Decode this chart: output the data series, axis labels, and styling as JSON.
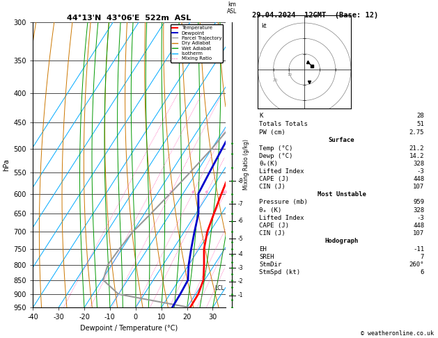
{
  "title_skewt": "44°13'N  43°06'E  522m  ASL",
  "title_right": "29.04.2024  12GMT  (Base: 12)",
  "xlabel": "Dewpoint / Temperature (°C)",
  "ylabel_left": "hPa",
  "ylabel_right": "Mixing Ratio (g/kg)",
  "pressure_levels": [
    300,
    350,
    400,
    450,
    500,
    550,
    600,
    650,
    700,
    750,
    800,
    850,
    900,
    950
  ],
  "temp_x": [
    -5.0,
    -3.5,
    -2.0,
    0.0,
    1.5,
    3.0,
    5.0,
    7.0,
    9.0,
    12.0,
    16.0,
    19.5,
    21.0,
    21.2
  ],
  "dewp_x": [
    -10.0,
    -9.0,
    -8.0,
    -7.0,
    -6.0,
    -5.0,
    -4.0,
    1.0,
    4.0,
    7.0,
    10.0,
    13.5,
    14.0,
    14.2
  ],
  "parcel_x": [
    -5.0,
    -5.5,
    -6.5,
    -8.0,
    -10.0,
    -12.5,
    -15.0,
    -17.5,
    -20.0,
    -21.0,
    -21.5,
    -19.5,
    -10.0,
    21.2
  ],
  "t_min": -40,
  "t_max": 35,
  "p_min": 300,
  "p_max": 950,
  "km_ticks": [
    1,
    2,
    3,
    4,
    5,
    6,
    7,
    8
  ],
  "km_pressures": [
    905,
    855,
    810,
    765,
    720,
    670,
    625,
    570
  ],
  "lcl_pressure": 880,
  "colors": {
    "temperature": "#ff0000",
    "dewpoint": "#0000cc",
    "parcel": "#999999",
    "dry_adiabat": "#cc7700",
    "wet_adiabat": "#009900",
    "isotherm": "#00aaff",
    "mixing_ratio": "#ff44aa",
    "background": "#ffffff",
    "grid": "#000000"
  },
  "skew_factor": 0.95,
  "info": {
    "K": "28",
    "Totals Totals": "51",
    "PW (cm)": "2.75",
    "surf_temp": "21.2",
    "surf_dewp": "14.2",
    "surf_theta": "328",
    "surf_li": "-3",
    "surf_cape": "448",
    "surf_cin": "107",
    "mu_pres": "959",
    "mu_theta": "328",
    "mu_li": "-3",
    "mu_cape": "448",
    "mu_cin": "107",
    "eh": "-11",
    "sreh": "7",
    "stmdir": "260°",
    "stmspd": "6"
  }
}
